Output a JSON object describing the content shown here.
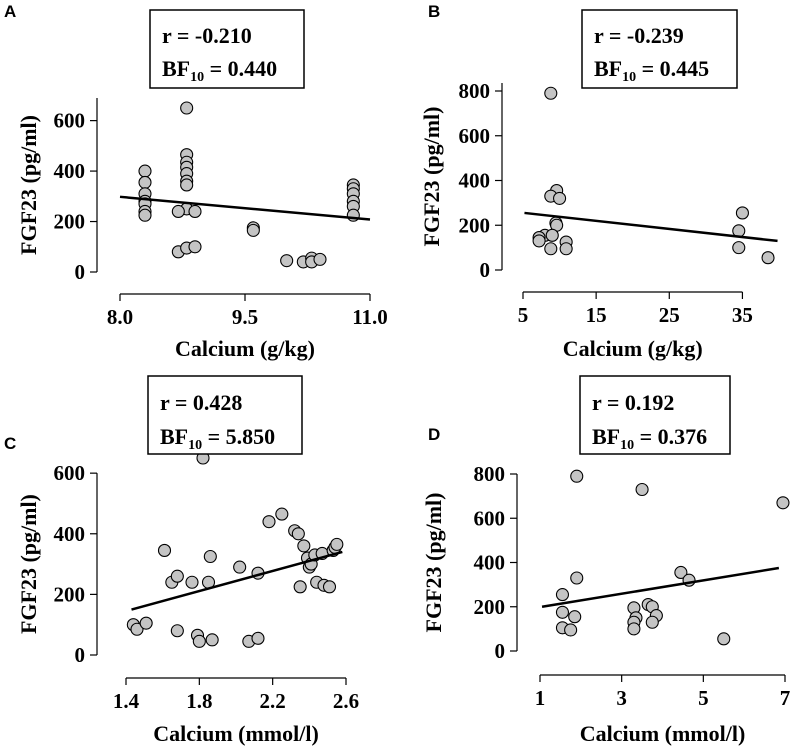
{
  "chart_data": [
    {
      "panel": "A",
      "type": "scatter",
      "xlabel": "Calcium (g/kg)",
      "ylabel": "FGF23 (pg/ml)",
      "xlim": [
        8.0,
        11.0
      ],
      "ylim": [
        0,
        650
      ],
      "xticks": [
        8.0,
        9.5,
        11.0
      ],
      "xtick_labels": [
        "8.0",
        "9.5",
        "11.0"
      ],
      "yticks": [
        0,
        200,
        400,
        600
      ],
      "ytick_labels": [
        "0",
        "200",
        "400",
        "600"
      ],
      "stat_r": "r = -0.210",
      "stat_bf_main": "BF",
      "stat_bf_sub": "10",
      "stat_bf_value": " = 0.440",
      "fit_line": {
        "x": [
          8.0,
          11.0
        ],
        "y": [
          298,
          208
        ]
      },
      "points": [
        {
          "x": 8.3,
          "y": 400
        },
        {
          "x": 8.3,
          "y": 355
        },
        {
          "x": 8.3,
          "y": 310
        },
        {
          "x": 8.3,
          "y": 280
        },
        {
          "x": 8.3,
          "y": 270
        },
        {
          "x": 8.3,
          "y": 240
        },
        {
          "x": 8.3,
          "y": 225
        },
        {
          "x": 8.8,
          "y": 650
        },
        {
          "x": 8.8,
          "y": 465
        },
        {
          "x": 8.8,
          "y": 435
        },
        {
          "x": 8.8,
          "y": 415
        },
        {
          "x": 8.8,
          "y": 390
        },
        {
          "x": 8.8,
          "y": 360
        },
        {
          "x": 8.8,
          "y": 345
        },
        {
          "x": 8.8,
          "y": 250
        },
        {
          "x": 8.7,
          "y": 240
        },
        {
          "x": 8.9,
          "y": 240
        },
        {
          "x": 8.7,
          "y": 80
        },
        {
          "x": 8.8,
          "y": 95
        },
        {
          "x": 8.9,
          "y": 100
        },
        {
          "x": 9.6,
          "y": 175
        },
        {
          "x": 9.6,
          "y": 165
        },
        {
          "x": 10.0,
          "y": 45
        },
        {
          "x": 10.2,
          "y": 40
        },
        {
          "x": 10.3,
          "y": 55
        },
        {
          "x": 10.3,
          "y": 40
        },
        {
          "x": 10.4,
          "y": 50
        },
        {
          "x": 10.8,
          "y": 345
        },
        {
          "x": 10.8,
          "y": 330
        },
        {
          "x": 10.8,
          "y": 310
        },
        {
          "x": 10.8,
          "y": 280
        },
        {
          "x": 10.8,
          "y": 260
        },
        {
          "x": 10.8,
          "y": 225
        }
      ]
    },
    {
      "panel": "B",
      "type": "scatter",
      "xlabel": "Calcium (g/kg)",
      "ylabel": "FGF23 (pg/ml)",
      "xlim": [
        5,
        40
      ],
      "ylim": [
        0,
        800
      ],
      "xticks": [
        5,
        15,
        25,
        35
      ],
      "xtick_labels": [
        "5",
        "15",
        "25",
        "35"
      ],
      "yticks": [
        0,
        200,
        400,
        600,
        800
      ],
      "ytick_labels": [
        "0",
        "200",
        "400",
        "600",
        "800"
      ],
      "stat_r": "r = -0.239",
      "stat_bf_main": "BF",
      "stat_bf_sub": "10",
      "stat_bf_value": " = 0.445",
      "fit_line": {
        "x": [
          5.2,
          39.8
        ],
        "y": [
          255,
          130
        ]
      },
      "points": [
        {
          "x": 8.8,
          "y": 790
        },
        {
          "x": 9.6,
          "y": 355
        },
        {
          "x": 8.8,
          "y": 330
        },
        {
          "x": 10.0,
          "y": 320
        },
        {
          "x": 9.5,
          "y": 210
        },
        {
          "x": 9.6,
          "y": 200
        },
        {
          "x": 8.0,
          "y": 155
        },
        {
          "x": 9.0,
          "y": 155
        },
        {
          "x": 7.2,
          "y": 145
        },
        {
          "x": 7.2,
          "y": 130
        },
        {
          "x": 10.9,
          "y": 125
        },
        {
          "x": 8.8,
          "y": 95
        },
        {
          "x": 10.9,
          "y": 95
        },
        {
          "x": 35.0,
          "y": 255
        },
        {
          "x": 34.5,
          "y": 175
        },
        {
          "x": 34.5,
          "y": 100
        },
        {
          "x": 38.5,
          "y": 55
        }
      ]
    },
    {
      "panel": "C",
      "type": "scatter",
      "xlabel": "Calcium (mmol/l)",
      "ylabel": "FGF23 (pg/ml)",
      "xlim": [
        1.4,
        2.6
      ],
      "ylim": [
        0,
        650
      ],
      "xticks": [
        1.4,
        1.8,
        2.2,
        2.6
      ],
      "xtick_labels": [
        "1.4",
        "1.8",
        "2.2",
        "2.6"
      ],
      "yticks": [
        0,
        200,
        400,
        600
      ],
      "ytick_labels": [
        "0",
        "200",
        "400",
        "600"
      ],
      "stat_r": "r = 0.428",
      "stat_bf_main": "BF",
      "stat_bf_sub": "10",
      "stat_bf_value": " = 5.850",
      "fit_line": {
        "x": [
          1.43,
          2.58
        ],
        "y": [
          150,
          340
        ]
      },
      "points": [
        {
          "x": 1.44,
          "y": 100
        },
        {
          "x": 1.46,
          "y": 85
        },
        {
          "x": 1.51,
          "y": 105
        },
        {
          "x": 1.61,
          "y": 345
        },
        {
          "x": 1.65,
          "y": 240
        },
        {
          "x": 1.68,
          "y": 260
        },
        {
          "x": 1.68,
          "y": 80
        },
        {
          "x": 1.76,
          "y": 240
        },
        {
          "x": 1.79,
          "y": 65
        },
        {
          "x": 1.8,
          "y": 45
        },
        {
          "x": 1.82,
          "y": 650
        },
        {
          "x": 1.85,
          "y": 240
        },
        {
          "x": 1.86,
          "y": 325
        },
        {
          "x": 1.87,
          "y": 50
        },
        {
          "x": 2.02,
          "y": 290
        },
        {
          "x": 2.07,
          "y": 45
        },
        {
          "x": 2.12,
          "y": 270
        },
        {
          "x": 2.12,
          "y": 55
        },
        {
          "x": 2.18,
          "y": 440
        },
        {
          "x": 2.25,
          "y": 465
        },
        {
          "x": 2.32,
          "y": 410
        },
        {
          "x": 2.34,
          "y": 400
        },
        {
          "x": 2.35,
          "y": 225
        },
        {
          "x": 2.37,
          "y": 360
        },
        {
          "x": 2.39,
          "y": 320
        },
        {
          "x": 2.4,
          "y": 290
        },
        {
          "x": 2.41,
          "y": 300
        },
        {
          "x": 2.43,
          "y": 330
        },
        {
          "x": 2.44,
          "y": 240
        },
        {
          "x": 2.47,
          "y": 335
        },
        {
          "x": 2.48,
          "y": 230
        },
        {
          "x": 2.51,
          "y": 225
        },
        {
          "x": 2.53,
          "y": 345
        },
        {
          "x": 2.54,
          "y": 355
        },
        {
          "x": 2.55,
          "y": 365
        }
      ]
    },
    {
      "panel": "D",
      "type": "scatter",
      "xlabel": "Calcium (mmol/l)",
      "ylabel": "FGF23 (pg/ml)",
      "xlim": [
        1,
        7
      ],
      "ylim": [
        0,
        800
      ],
      "xticks": [
        1,
        3,
        5,
        7
      ],
      "xtick_labels": [
        "1",
        "3",
        "5",
        "7"
      ],
      "yticks": [
        0,
        200,
        400,
        600,
        800
      ],
      "ytick_labels": [
        "0",
        "200",
        "400",
        "600",
        "800"
      ],
      "stat_r": "r = 0.192",
      "stat_bf_main": "BF",
      "stat_bf_sub": "10",
      "stat_bf_value": " = 0.376",
      "fit_line": {
        "x": [
          1.05,
          6.85
        ],
        "y": [
          200,
          375
        ]
      },
      "points": [
        {
          "x": 1.9,
          "y": 790
        },
        {
          "x": 3.5,
          "y": 730
        },
        {
          "x": 6.95,
          "y": 670
        },
        {
          "x": 1.55,
          "y": 255
        },
        {
          "x": 1.9,
          "y": 330
        },
        {
          "x": 1.55,
          "y": 175
        },
        {
          "x": 1.85,
          "y": 155
        },
        {
          "x": 1.55,
          "y": 105
        },
        {
          "x": 1.75,
          "y": 95
        },
        {
          "x": 3.3,
          "y": 195
        },
        {
          "x": 3.35,
          "y": 150
        },
        {
          "x": 3.3,
          "y": 130
        },
        {
          "x": 3.3,
          "y": 100
        },
        {
          "x": 3.65,
          "y": 210
        },
        {
          "x": 3.75,
          "y": 200
        },
        {
          "x": 3.85,
          "y": 160
        },
        {
          "x": 3.75,
          "y": 130
        },
        {
          "x": 4.45,
          "y": 355
        },
        {
          "x": 4.65,
          "y": 320
        },
        {
          "x": 5.5,
          "y": 55
        }
      ]
    }
  ]
}
